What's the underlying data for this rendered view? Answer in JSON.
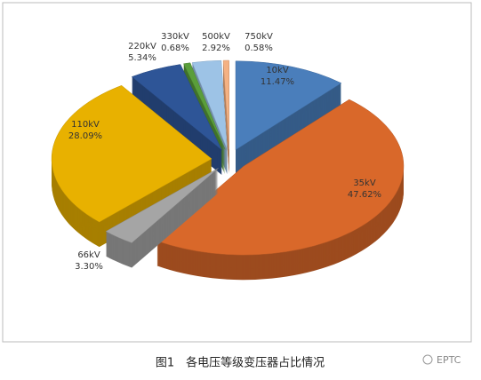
{
  "chart_data": {
    "type": "pie3d",
    "categories": [
      "10kV",
      "35kV",
      "66kV",
      "110kV",
      "220kV",
      "330kV",
      "500kV",
      "750kV"
    ],
    "values": [
      11.47,
      47.62,
      3.3,
      28.09,
      5.34,
      0.68,
      2.92,
      0.58
    ],
    "value_labels": [
      "11.47%",
      "47.62%",
      "3.30%",
      "28.09%",
      "5.34%",
      "0.68%",
      "2.92%",
      "0.58%"
    ],
    "colors": [
      "#4a7ebb",
      "#d9682a",
      "#a5a5a5",
      "#e8b100",
      "#2e5597",
      "#5a9e3b",
      "#9dc3e6",
      "#f4b183"
    ]
  },
  "caption": "图1　各电压等级变压器占比情况",
  "watermark": "EPTC"
}
